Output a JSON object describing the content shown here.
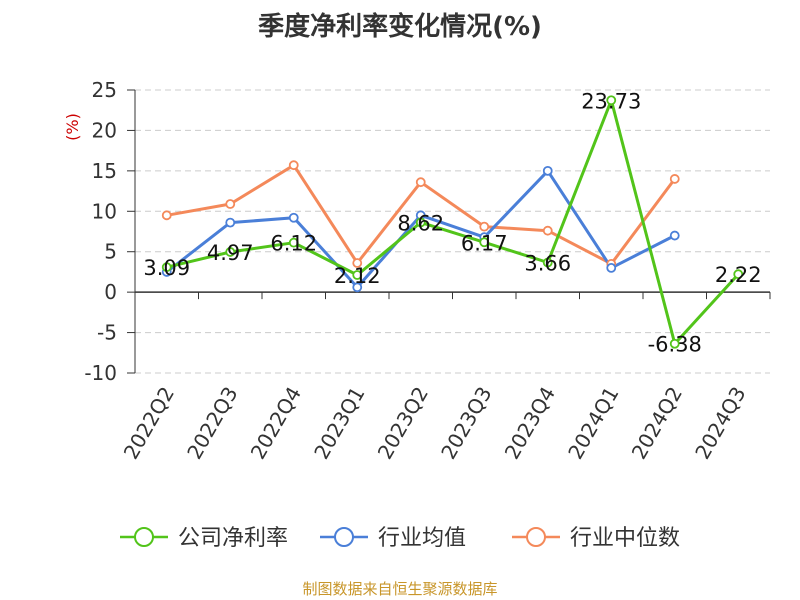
{
  "chart_data": {
    "type": "line",
    "title": "季度净利率变化情况(%)",
    "ylabel": "(%)",
    "categories": [
      "2022Q2",
      "2022Q3",
      "2022Q4",
      "2023Q1",
      "2023Q2",
      "2023Q3",
      "2023Q4",
      "2024Q1",
      "2024Q2",
      "2024Q3"
    ],
    "ylim": [
      -10,
      25
    ],
    "yticks": [
      "25",
      "20",
      "15",
      "10",
      "5",
      "0",
      "-5",
      "-10"
    ],
    "grid": true,
    "legend_position": "bottom",
    "series": [
      {
        "name": "公司净利率",
        "color": "#52c41a",
        "values": [
          3.09,
          4.97,
          6.12,
          2.12,
          8.62,
          6.17,
          3.66,
          23.73,
          -6.38,
          2.22
        ],
        "labels": [
          "3.09",
          "4.97",
          "6.12",
          "2.12",
          "8.62",
          "6.17",
          "3.66",
          "23.73",
          "-6.38",
          "2.22"
        ]
      },
      {
        "name": "行业均值",
        "color": "#4a7fd8",
        "values": [
          2.5,
          8.6,
          9.2,
          0.6,
          9.5,
          6.8,
          15.0,
          3.0,
          7.0,
          null
        ]
      },
      {
        "name": "行业中位数",
        "color": "#f4895a",
        "values": [
          9.5,
          10.9,
          15.7,
          3.6,
          13.6,
          8.1,
          7.6,
          3.5,
          14.0,
          null
        ]
      }
    ]
  },
  "source": "制图数据来自恒生聚源数据库"
}
